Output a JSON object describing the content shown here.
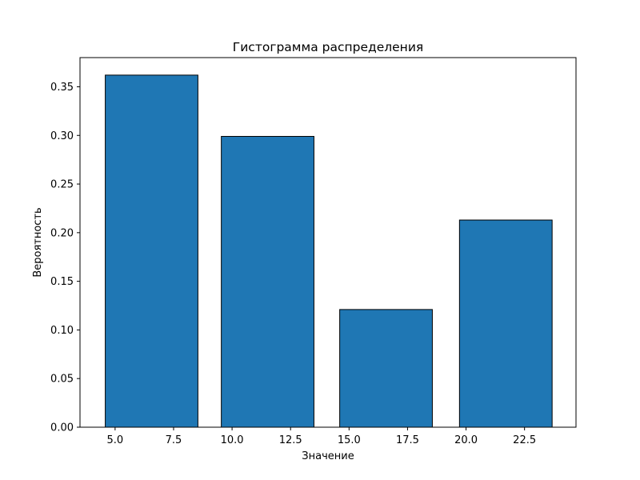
{
  "chart_data": {
    "type": "bar",
    "title": "Гистограмма распределения",
    "xlabel": "Значение",
    "ylabel": "Вероятность",
    "x": [
      6.56,
      11.52,
      16.58,
      21.7
    ],
    "widths": [
      3.96,
      3.96,
      3.96,
      3.96
    ],
    "values": [
      0.362,
      0.299,
      0.121,
      0.213
    ],
    "xlim": [
      3.5,
      24.7
    ],
    "ylim": [
      0,
      0.38
    ],
    "xticks": [
      5.0,
      7.5,
      10.0,
      12.5,
      15.0,
      17.5,
      20.0,
      22.5
    ],
    "xtick_labels": [
      "5.0",
      "7.5",
      "10.0",
      "12.5",
      "15.0",
      "17.5",
      "20.0",
      "22.5"
    ],
    "yticks": [
      0.0,
      0.05,
      0.1,
      0.15,
      0.2,
      0.25,
      0.3,
      0.35
    ],
    "ytick_labels": [
      "0.00",
      "0.05",
      "0.10",
      "0.15",
      "0.20",
      "0.25",
      "0.30",
      "0.35"
    ],
    "grid": false,
    "legend": "none",
    "colors": {
      "bar_fill": "#1f77b4",
      "bar_edge": "#000000",
      "axes": "#000000"
    }
  }
}
